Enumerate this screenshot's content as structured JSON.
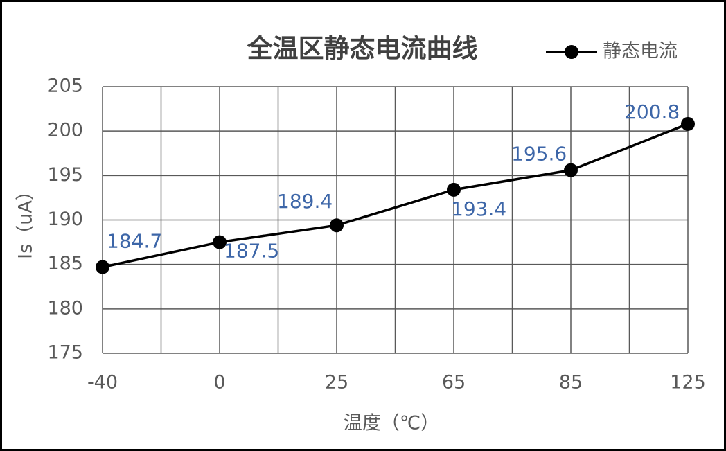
{
  "chart_data": {
    "type": "line",
    "title": "全温区静态电流曲线",
    "x_label": "温度（℃）",
    "y_label": "Is（uA）",
    "categories": [
      "-40",
      "0",
      "25",
      "65",
      "85",
      "125"
    ],
    "series": [
      {
        "name": "静态电流",
        "color": "#000000",
        "values": [
          184.7,
          187.5,
          189.4,
          193.4,
          195.6,
          200.8
        ]
      }
    ],
    "ylim": [
      175,
      205
    ],
    "yticks": [
      175,
      180,
      185,
      190,
      195,
      200,
      205
    ],
    "grid": true,
    "legend": "top-right"
  }
}
